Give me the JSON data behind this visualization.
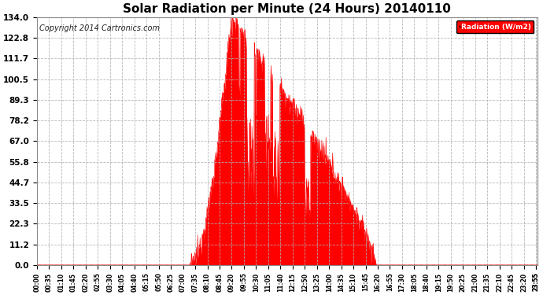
{
  "title": "Solar Radiation per Minute (24 Hours) 20140110",
  "copyright": "Copyright 2014 Cartronics.com",
  "legend_label": "Radiation (W/m2)",
  "yticks": [
    0.0,
    11.2,
    22.3,
    33.5,
    44.7,
    55.8,
    67.0,
    78.2,
    89.3,
    100.5,
    111.7,
    122.8,
    134.0
  ],
  "ylim": [
    0.0,
    134.0
  ],
  "bar_color": "#ff0000",
  "background_color": "#ffffff",
  "grid_color": "#b0b0b0",
  "title_fontsize": 11,
  "copyright_fontsize": 7,
  "xtick_fontsize": 5.5,
  "ytick_fontsize": 7.5,
  "figwidth": 6.9,
  "figheight": 3.75,
  "dpi": 100,
  "sunrise_min": 440,
  "peak_min": 558,
  "sunset_min": 975,
  "max_rad": 134.0
}
